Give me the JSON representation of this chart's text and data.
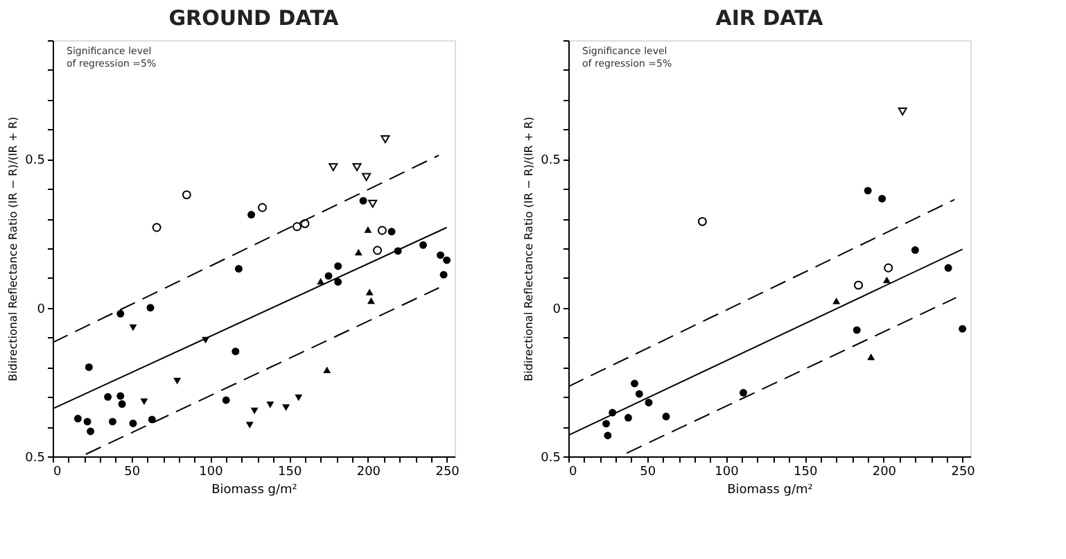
{
  "chart_data": [
    {
      "type": "scatter",
      "title": "GROUND DATA",
      "xlabel": "Biomass g/m²",
      "ylabel": "Bidirectional Reflectance Ratio  (IR − R)/(IR + R)",
      "annotations": [
        "Significance level\nof regression =5%"
      ],
      "xlim": [
        0,
        255
      ],
      "ylim": [
        -0.5,
        0.9
      ],
      "xticks": [
        0,
        {
          "value": 10,
          "label": null
        },
        {
          "value": 20,
          "label": null
        },
        {
          "value": 30,
          "label": null
        },
        {
          "value": 40,
          "label": null
        },
        50,
        {
          "value": 60,
          "label": null
        },
        {
          "value": 70,
          "label": null
        },
        {
          "value": 80,
          "label": null
        },
        {
          "value": 90,
          "label": null
        },
        100,
        {
          "value": 110,
          "label": null
        },
        {
          "value": 120,
          "label": null
        },
        {
          "value": 130,
          "label": null
        },
        {
          "value": 140,
          "label": null
        },
        150,
        {
          "value": 160,
          "label": null
        },
        {
          "value": 170,
          "label": null
        },
        {
          "value": 180,
          "label": null
        },
        {
          "value": 190,
          "label": null
        },
        200,
        {
          "value": 210,
          "label": null
        },
        {
          "value": 220,
          "label": null
        },
        {
          "value": 230,
          "label": null
        },
        {
          "value": 240,
          "label": null
        },
        250
      ],
      "yticks": [
        {
          "value": -0.5,
          "label": "0.5"
        },
        {
          "value": -0.4,
          "label": null
        },
        {
          "value": -0.3,
          "label": null
        },
        {
          "value": -0.2,
          "label": null
        },
        {
          "value": -0.1,
          "label": null
        },
        0,
        {
          "value": 0.1,
          "label": null
        },
        {
          "value": 0.2,
          "label": null
        },
        {
          "value": 0.3,
          "label": null
        },
        {
          "value": 0.4,
          "label": null
        },
        0.5,
        {
          "value": 0.6,
          "label": null
        },
        {
          "value": 0.7,
          "label": null
        },
        {
          "value": 0.8,
          "label": null
        },
        {
          "value": 0.9,
          "label": null
        }
      ],
      "grid": false,
      "series": [
        {
          "type": "line",
          "color": "#000000",
          "line_style": "solid",
          "marker": "none",
          "x": [
            0,
            250
          ],
          "values": [
            -0.34,
            0.27
          ]
        },
        {
          "type": "line",
          "color": "#000000",
          "line_style": "dashed",
          "marker": "none",
          "x": [
            0,
            245
          ],
          "values": [
            -0.117,
            0.513
          ]
        },
        {
          "type": "line",
          "color": "#000000",
          "line_style": "dashed",
          "marker": "none",
          "x": [
            21,
            245
          ],
          "values": [
            -0.493,
            0.067
          ]
        },
        {
          "color": "#000000",
          "marker": "circle",
          "x": [
            126,
            197,
            215,
            235,
            219,
            246,
            250,
            248,
            181,
            175,
            181,
            118,
            43,
            62,
            23,
            116,
            35,
            43,
            44,
            110,
            16,
            22,
            24,
            38,
            51,
            63
          ],
          "values": [
            0.313,
            0.36,
            0.256,
            0.211,
            0.191,
            0.177,
            0.16,
            0.111,
            0.14,
            0.107,
            0.087,
            0.131,
            -0.02,
            0,
            -0.2,
            -0.147,
            -0.3,
            -0.297,
            -0.324,
            -0.311,
            -0.373,
            -0.383,
            -0.416,
            -0.383,
            -0.389,
            -0.376
          ]
        },
        {
          "color": "#000000",
          "marker": "circle-open",
          "x": [
            85,
            66,
            133,
            155,
            160,
            209,
            206
          ],
          "values": [
            0.38,
            0.27,
            0.337,
            0.273,
            0.283,
            0.26,
            0.193
          ]
        },
        {
          "color": "#000000",
          "marker": "triangle-down-open",
          "x": [
            211,
            178,
            193,
            199,
            203
          ],
          "values": [
            0.567,
            0.473,
            0.473,
            0.44,
            0.35
          ]
        },
        {
          "color": "#000000",
          "marker": "triangle-down",
          "x": [
            51,
            97,
            79,
            58,
            128,
            125,
            138,
            148,
            156
          ],
          "values": [
            -0.067,
            -0.109,
            -0.247,
            -0.316,
            -0.347,
            -0.395,
            -0.327,
            -0.336,
            -0.303
          ]
        },
        {
          "color": "#000000",
          "marker": "triangle",
          "x": [
            200,
            170,
            194,
            201,
            202,
            174
          ],
          "values": [
            0.263,
            0.089,
            0.187,
            0.053,
            0.024,
            -0.209
          ]
        }
      ]
    },
    {
      "type": "scatter",
      "title": "AIR DATA",
      "xlabel": "Biomass g/m²",
      "ylabel": "Bidirectional Reflectance Ratio  (IR − R)/(IR + R)",
      "annotations": [
        "Significance level\nof regression =5%"
      ],
      "xlim": [
        0,
        255
      ],
      "ylim": [
        -0.5,
        0.9
      ],
      "xticks": [
        0,
        {
          "value": 10,
          "label": null
        },
        {
          "value": 20,
          "label": null
        },
        {
          "value": 30,
          "label": null
        },
        {
          "value": 40,
          "label": null
        },
        50,
        {
          "value": 60,
          "label": null
        },
        {
          "value": 70,
          "label": null
        },
        {
          "value": 80,
          "label": null
        },
        {
          "value": 90,
          "label": null
        },
        100,
        {
          "value": 110,
          "label": null
        },
        {
          "value": 120,
          "label": null
        },
        {
          "value": 130,
          "label": null
        },
        {
          "value": 140,
          "label": null
        },
        150,
        {
          "value": 160,
          "label": null
        },
        {
          "value": 170,
          "label": null
        },
        {
          "value": 180,
          "label": null
        },
        {
          "value": 190,
          "label": null
        },
        200,
        {
          "value": 210,
          "label": null
        },
        {
          "value": 220,
          "label": null
        },
        {
          "value": 230,
          "label": null
        },
        {
          "value": 240,
          "label": null
        },
        250
      ],
      "yticks": [
        {
          "value": -0.5,
          "label": "0.5"
        },
        {
          "value": -0.4,
          "label": null
        },
        {
          "value": -0.3,
          "label": null
        },
        {
          "value": -0.2,
          "label": null
        },
        {
          "value": -0.1,
          "label": null
        },
        0,
        {
          "value": 0.1,
          "label": null
        },
        {
          "value": 0.2,
          "label": null
        },
        {
          "value": 0.3,
          "label": null
        },
        {
          "value": 0.4,
          "label": null
        },
        0.5,
        {
          "value": 0.6,
          "label": null
        },
        {
          "value": 0.7,
          "label": null
        },
        {
          "value": 0.8,
          "label": null
        },
        {
          "value": 0.9,
          "label": null
        }
      ],
      "grid": false,
      "series": [
        {
          "type": "line",
          "color": "#000000",
          "line_style": "solid",
          "marker": "none",
          "x": [
            0,
            250
          ],
          "values": [
            -0.429,
            0.197
          ]
        },
        {
          "type": "line",
          "color": "#000000",
          "line_style": "dashed",
          "marker": "none",
          "x": [
            0,
            245
          ],
          "values": [
            -0.265,
            0.364
          ]
        },
        {
          "type": "line",
          "color": "#000000",
          "line_style": "dashed",
          "marker": "none",
          "x": [
            37,
            246
          ],
          "values": [
            -0.489,
            0.034
          ]
        },
        {
          "color": "#000000",
          "marker": "circle",
          "x": [
            190,
            199,
            220,
            241,
            250,
            183,
            111,
            24,
            25,
            28,
            38,
            42,
            45,
            51,
            62
          ],
          "values": [
            0.394,
            0.367,
            0.194,
            0.134,
            -0.071,
            -0.075,
            -0.286,
            -0.39,
            -0.43,
            -0.353,
            -0.37,
            -0.255,
            -0.29,
            -0.319,
            -0.366
          ]
        },
        {
          "color": "#000000",
          "marker": "circle-open",
          "x": [
            85,
            184,
            203
          ],
          "values": [
            0.29,
            0.076,
            0.134
          ]
        },
        {
          "color": "#000000",
          "marker": "triangle-down-open",
          "x": [
            212
          ],
          "values": [
            0.66
          ]
        },
        {
          "color": "#000000",
          "marker": "triangle",
          "x": [
            170,
            202,
            192
          ],
          "values": [
            0.023,
            0.094,
            -0.165
          ]
        }
      ]
    }
  ]
}
